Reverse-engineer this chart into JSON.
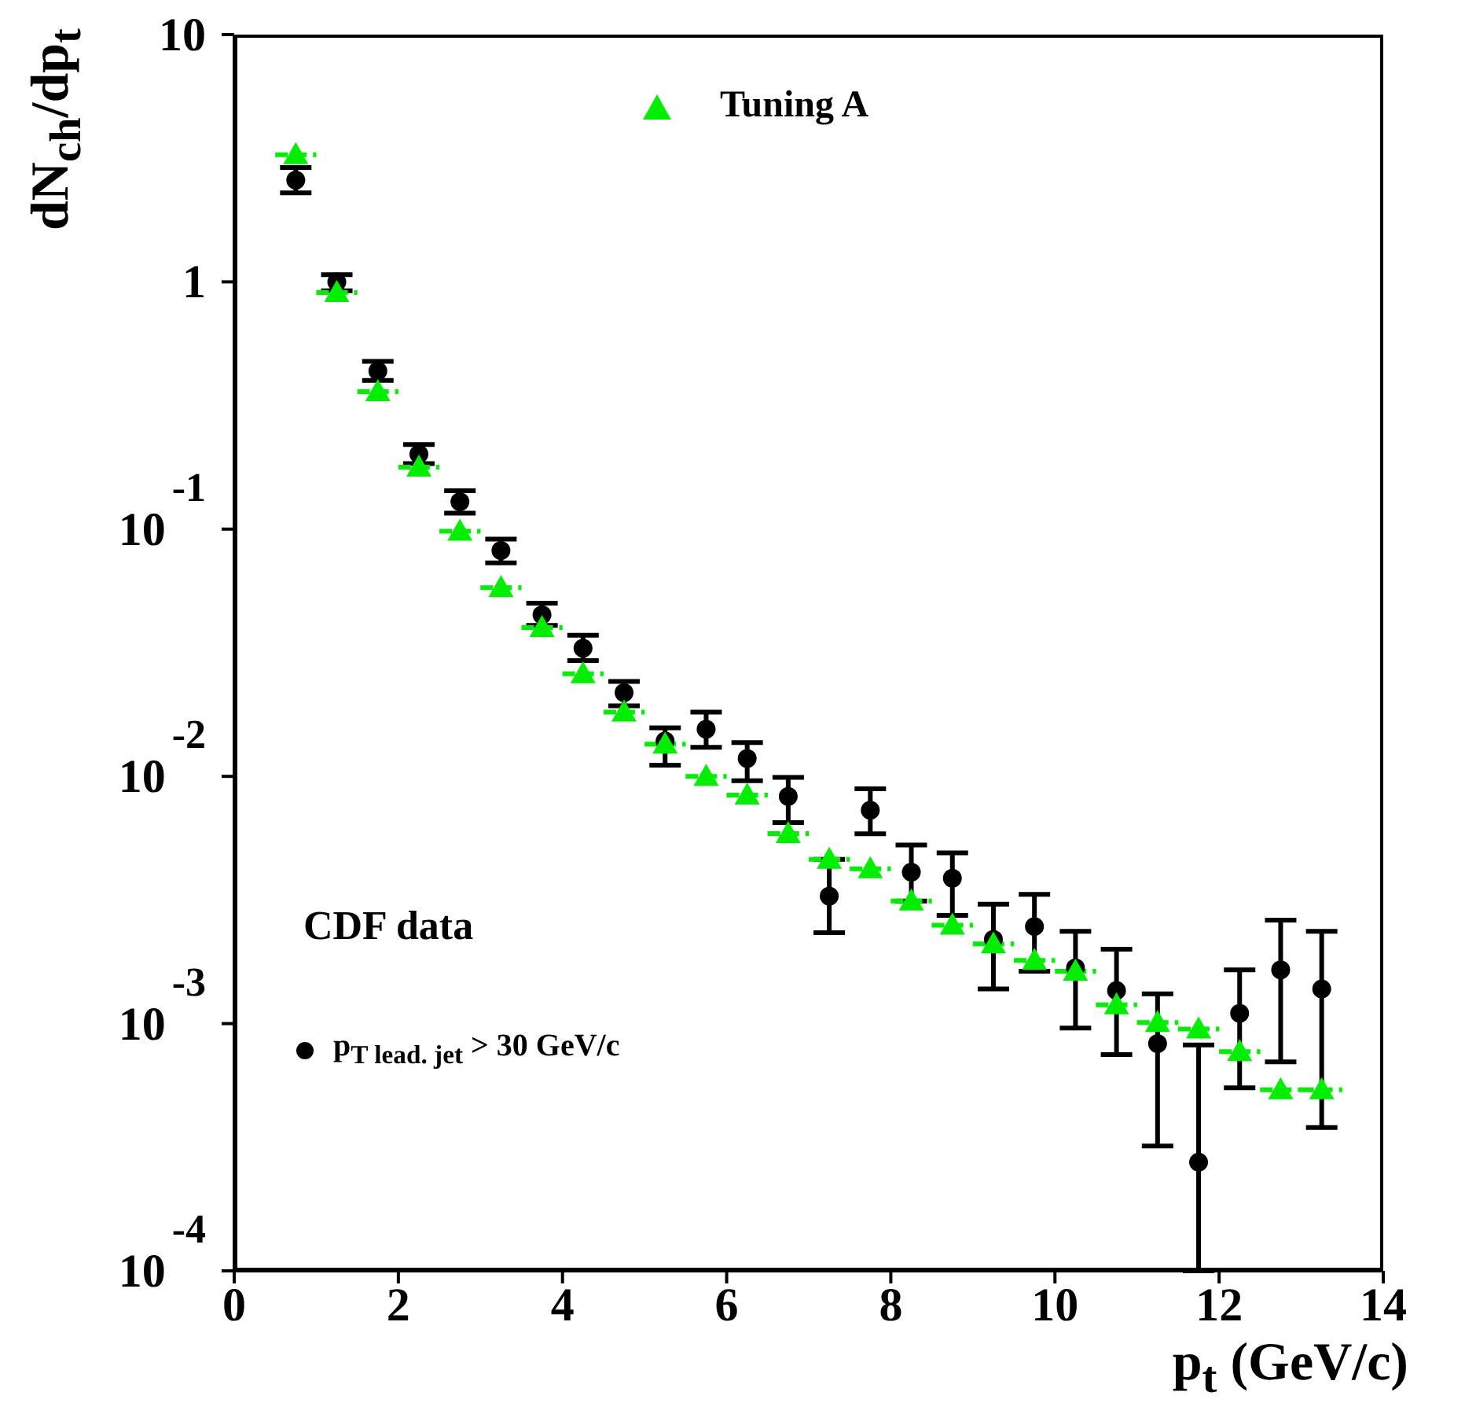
{
  "chart_data": {
    "type": "scatter",
    "xlabel": "p$_{t}$ (GeV/c)",
    "ylabel": "dN$_{ch}$/dp$_{t}$",
    "log": "y",
    "xlim": [
      0,
      14
    ],
    "xticks": [
      0,
      2,
      4,
      6,
      8,
      10,
      12,
      14
    ],
    "ylim": [
      0.0001,
      10
    ],
    "yticks": [
      {
        "value": 0.0001,
        "label": "10$^{-4}$"
      },
      {
        "value": 0.001,
        "label": "10$^{-3}$"
      },
      {
        "value": 0.01,
        "label": "10$^{-2}$"
      },
      {
        "value": 0.1,
        "label": "10$^{-1}$"
      },
      1,
      10
    ],
    "legend": "top",
    "annotations": [
      "CDF data"
    ],
    "x": [
      0.75,
      1.25,
      1.75,
      2.25,
      2.75,
      3.25,
      3.75,
      4.25,
      4.75,
      5.25,
      5.75,
      6.25,
      6.75,
      7.25,
      7.75,
      8.25,
      8.75,
      9.25,
      9.75,
      10.25,
      10.75,
      11.25,
      11.75,
      12.25,
      12.75,
      13.25
    ],
    "series": [
      {
        "name": "p$_{T lead. jet}$ > 30 GeV/c",
        "color": "#000000",
        "marker": "circle",
        "values": [
          2.58,
          1.0,
          0.436,
          0.201,
          0.129,
          0.082,
          0.045,
          0.033,
          0.0218,
          0.0139,
          0.0155,
          0.0118,
          0.0083,
          0.00328,
          0.0073,
          0.0041,
          0.00387,
          0.00219,
          0.00247,
          0.00168,
          0.00136,
          0.00083,
          0.000275,
          0.0011,
          0.00165,
          0.00138
        ],
        "errors": [
          [
            2.29,
            2.9
          ],
          [
            0.92,
            1.07
          ],
          [
            0.399,
            0.477
          ],
          [
            0.184,
            0.22
          ],
          [
            0.116,
            0.143
          ],
          [
            0.073,
            0.0912
          ],
          [
            0.0408,
            0.0502
          ],
          [
            0.0294,
            0.0372
          ],
          [
            0.0193,
            0.0242
          ],
          [
            0.0111,
            0.0157
          ],
          [
            0.0131,
            0.0182
          ],
          [
            0.0096,
            0.0137
          ],
          [
            0.0065,
            0.0099
          ],
          [
            0.00233,
            0.00462
          ],
          [
            0.00586,
            0.0089
          ],
          [
            0.00313,
            0.00528
          ],
          [
            0.00274,
            0.0049
          ],
          [
            0.00138,
            0.00304
          ],
          [
            0.00163,
            0.00333
          ],
          [
            0.00096,
            0.00236
          ],
          [
            0.00075,
            0.002
          ],
          [
            0.00032,
            0.00132
          ],
          [
            0.0001,
            0.00082
          ],
          [
            0.00055,
            0.00165
          ],
          [
            0.0007,
            0.00262
          ],
          [
            0.00038,
            0.00236
          ]
        ]
      },
      {
        "name": "Tuning A",
        "color": "#00ee00",
        "marker": "triangle",
        "line_style": "dashed",
        "values": [
          3.27,
          0.906,
          0.36,
          0.178,
          0.098,
          0.058,
          0.04,
          0.026,
          0.0182,
          0.0135,
          0.01,
          0.0084,
          0.00587,
          0.00462,
          0.00423,
          0.00313,
          0.0025,
          0.0021,
          0.0018,
          0.00163,
          0.00119,
          0.00101,
          0.00095,
          0.00077,
          0.00054,
          0.00054
        ],
        "xerrors": [
          0.25,
          0.25,
          0.25,
          0.25,
          0.25,
          0.25,
          0.25,
          0.25,
          0.25,
          0.25,
          0.25,
          0.25,
          0.25,
          0.25,
          0.25,
          0.25,
          0.25,
          0.25,
          0.25,
          0.25,
          0.25,
          0.25,
          0.25,
          0.25,
          0.25,
          0.25
        ]
      }
    ]
  }
}
